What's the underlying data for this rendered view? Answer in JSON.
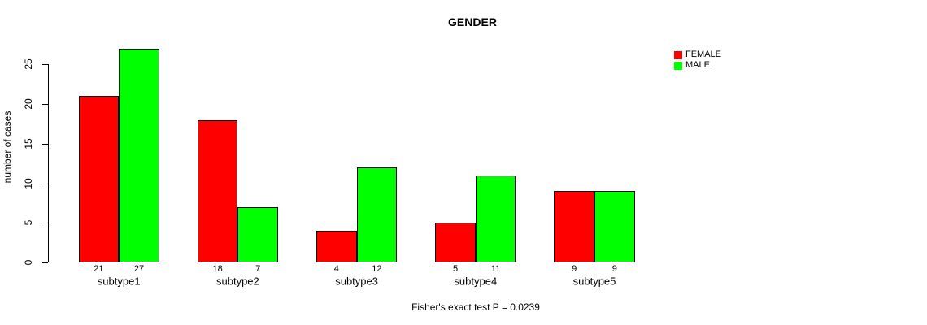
{
  "chart_data": {
    "type": "bar",
    "title": "GENDER",
    "ylabel": "number of cases",
    "xlabel": "",
    "caption": "Fisher's exact test P = 0.0239",
    "categories": [
      "subtype1",
      "subtype2",
      "subtype3",
      "subtype4",
      "subtype5"
    ],
    "series": [
      {
        "name": "FEMALE",
        "color": "#ff0000",
        "values": [
          21,
          18,
          4,
          5,
          9
        ]
      },
      {
        "name": "MALE",
        "color": "#00ff00",
        "values": [
          27,
          7,
          12,
          11,
          9
        ]
      }
    ],
    "yticks": [
      0,
      5,
      10,
      15,
      20,
      25
    ],
    "ylim": [
      0,
      27
    ],
    "grid": false,
    "legend_position": "top-right",
    "bar_value_labels_shown": true
  },
  "colors": {
    "background": "#ffffff",
    "axis": "#000000",
    "text": "#000000",
    "bar_border": "#000000",
    "female": "#ff0000",
    "male": "#00ff00"
  }
}
